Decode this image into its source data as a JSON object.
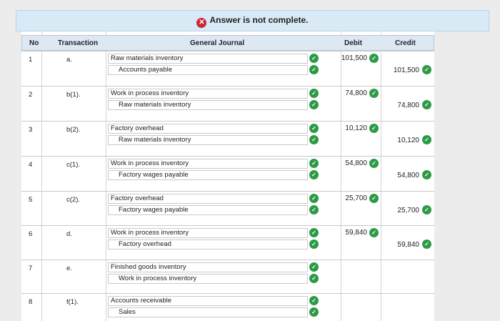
{
  "banner": {
    "status_icon": "x-circle-icon",
    "message": "Answer is not complete."
  },
  "headers": {
    "no": "No",
    "transaction": "Transaction",
    "journal": "General Journal",
    "debit": "Debit",
    "credit": "Credit"
  },
  "rows": [
    {
      "no": "1",
      "transaction": "a.",
      "debit_account": "Raw materials inventory",
      "credit_account": "Accounts payable",
      "debit": "101,500",
      "credit": "101,500"
    },
    {
      "no": "2",
      "transaction": "b(1).",
      "debit_account": "Work in process inventory",
      "credit_account": "Raw materials inventory",
      "debit": "74,800",
      "credit": "74,800"
    },
    {
      "no": "3",
      "transaction": "b(2).",
      "debit_account": "Factory overhead",
      "credit_account": "Raw materials inventory",
      "debit": "10,120",
      "credit": "10,120"
    },
    {
      "no": "4",
      "transaction": "c(1).",
      "debit_account": "Work in process inventory",
      "credit_account": "Factory wages payable",
      "debit": "54,800",
      "credit": "54,800"
    },
    {
      "no": "5",
      "transaction": "c(2).",
      "debit_account": "Factory overhead",
      "credit_account": "Factory wages payable",
      "debit": "25,700",
      "credit": "25,700"
    },
    {
      "no": "6",
      "transaction": "d.",
      "debit_account": "Work in process inventory",
      "credit_account": "Factory overhead",
      "debit": "59,840",
      "credit": "59,840"
    },
    {
      "no": "7",
      "transaction": "e.",
      "debit_account": "Finished goods inventory",
      "credit_account": "Work in process inventory",
      "debit": "",
      "credit": ""
    },
    {
      "no": "8",
      "transaction": "f(1).",
      "debit_account": "Accounts receivable",
      "credit_account": "Sales",
      "debit": "",
      "credit": ""
    }
  ]
}
